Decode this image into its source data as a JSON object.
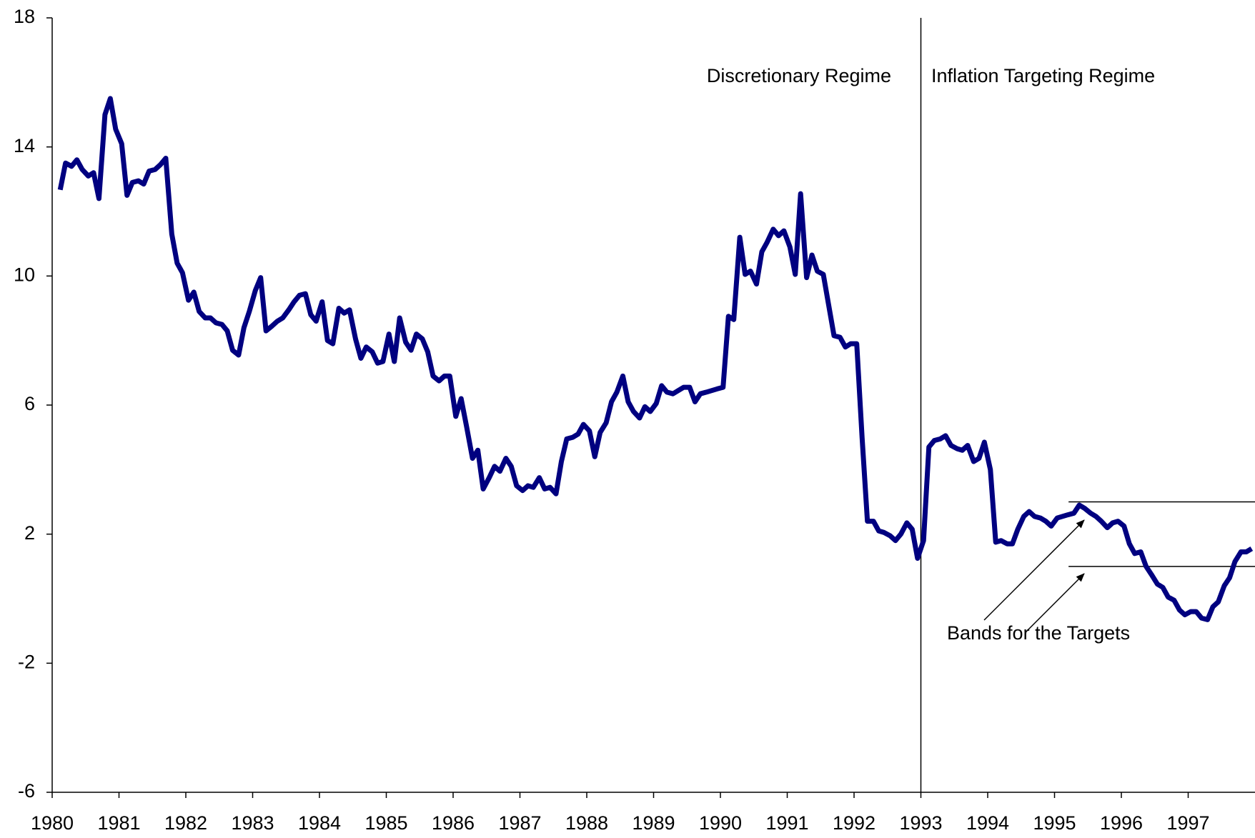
{
  "chart_data": {
    "type": "line",
    "annotations": [
      "Discretionary Regime",
      "Inflation Targeting Regime",
      "Bands for the Targets"
    ],
    "regime_change": 1993,
    "bands": [
      {
        "x": [
          1995.21,
          1998
        ],
        "y": 3
      },
      {
        "x": [
          1995.21,
          1998
        ],
        "y": 1
      }
    ],
    "xlim": [
      1980,
      1998
    ],
    "xticks": [
      1980,
      1981,
      1982,
      1983,
      1984,
      1985,
      1986,
      1987,
      1988,
      1989,
      1990,
      1991,
      1992,
      1993,
      1994,
      1995,
      1996,
      1997
    ],
    "ylim": [
      -6,
      18
    ],
    "yticks": [
      -6,
      -2,
      2,
      6,
      10,
      14,
      18
    ],
    "x": [
      1980.12,
      1980.2,
      1980.29,
      1980.37,
      1980.45,
      1980.54,
      1980.62,
      1980.7,
      1980.79,
      1980.87,
      1980.95,
      1981.04,
      1981.12,
      1981.2,
      1981.29,
      1981.37,
      1981.45,
      1981.54,
      1981.62,
      1981.7,
      1981.79,
      1981.87,
      1981.95,
      1982.04,
      1982.12,
      1982.2,
      1982.29,
      1982.37,
      1982.45,
      1982.54,
      1982.62,
      1982.7,
      1982.79,
      1982.87,
      1982.95,
      1983.04,
      1983.12,
      1983.2,
      1983.29,
      1983.37,
      1983.45,
      1983.54,
      1983.62,
      1983.7,
      1983.79,
      1983.87,
      1983.95,
      1984.04,
      1984.12,
      1984.2,
      1984.29,
      1984.37,
      1984.45,
      1984.54,
      1984.62,
      1984.7,
      1984.79,
      1984.87,
      1984.95,
      1985.04,
      1985.12,
      1985.2,
      1985.29,
      1985.37,
      1985.45,
      1985.54,
      1985.62,
      1985.7,
      1985.79,
      1985.87,
      1985.95,
      1986.04,
      1986.12,
      1986.2,
      1986.29,
      1986.37,
      1986.45,
      1986.54,
      1986.62,
      1986.7,
      1986.79,
      1986.87,
      1986.95,
      1987.04,
      1987.12,
      1987.2,
      1987.29,
      1987.37,
      1987.45,
      1987.54,
      1987.62,
      1987.7,
      1987.79,
      1987.87,
      1987.95,
      1988.04,
      1988.12,
      1988.2,
      1988.29,
      1988.37,
      1988.45,
      1988.54,
      1988.62,
      1988.7,
      1988.79,
      1988.87,
      1988.95,
      1989.04,
      1989.12,
      1989.2,
      1989.29,
      1989.37,
      1989.45,
      1989.54,
      1989.62,
      1989.7,
      1989.79,
      1989.87,
      1989.95,
      1990.04,
      1990.12,
      1990.2,
      1990.29,
      1990.37,
      1990.45,
      1990.54,
      1990.62,
      1990.7,
      1990.79,
      1990.87,
      1990.95,
      1991.04,
      1991.12,
      1991.2,
      1991.29,
      1991.37,
      1991.45,
      1991.54,
      1991.62,
      1991.7,
      1991.79,
      1991.87,
      1991.95,
      1992.04,
      1992.12,
      1992.2,
      1992.29,
      1992.37,
      1992.45,
      1992.54,
      1992.62,
      1992.7,
      1992.79,
      1992.87,
      1992.95,
      1993.04,
      1993.12,
      1993.2,
      1993.29,
      1993.37,
      1993.45,
      1993.54,
      1993.62,
      1993.7,
      1993.79,
      1993.87,
      1993.95,
      1994.04,
      1994.12,
      1994.2,
      1994.29,
      1994.37,
      1994.45,
      1994.54,
      1994.62,
      1994.7,
      1994.79,
      1994.87,
      1994.95,
      1995.04,
      1995.12,
      1995.2,
      1995.29,
      1995.37,
      1995.45,
      1995.54,
      1995.62,
      1995.7,
      1995.79,
      1995.87,
      1995.95,
      1996.04,
      1996.12,
      1996.2,
      1996.29,
      1996.37,
      1996.45,
      1996.54,
      1996.62,
      1996.7,
      1996.79,
      1996.87,
      1996.95,
      1997.04,
      1997.12,
      1997.2,
      1997.29,
      1997.37,
      1997.45,
      1997.54,
      1997.62,
      1997.7,
      1997.79,
      1997.87,
      1997.95
    ],
    "series": [
      {
        "color": "#000080",
        "values": [
          12.67,
          13.5,
          13.4,
          13.6,
          13.3,
          13.1,
          13.2,
          12.4,
          15.0,
          15.5,
          14.55,
          14.1,
          12.5,
          12.9,
          12.95,
          12.85,
          13.25,
          13.3,
          13.45,
          13.65,
          11.3,
          10.4,
          10.1,
          9.25,
          9.5,
          8.9,
          8.7,
          8.7,
          8.55,
          8.5,
          8.3,
          7.7,
          7.55,
          8.4,
          8.9,
          9.55,
          9.95,
          8.3,
          8.45,
          8.6,
          8.7,
          8.95,
          9.2,
          9.4,
          9.45,
          8.8,
          8.6,
          9.2,
          8.0,
          7.9,
          9.0,
          8.85,
          8.95,
          8.05,
          7.45,
          7.8,
          7.65,
          7.3,
          7.35,
          8.2,
          7.35,
          8.7,
          7.95,
          7.7,
          8.2,
          8.05,
          7.65,
          6.9,
          6.75,
          6.9,
          6.9,
          5.65,
          6.2,
          5.35,
          4.35,
          4.6,
          3.4,
          3.75,
          4.1,
          3.95,
          4.35,
          4.1,
          3.5,
          3.35,
          3.5,
          3.45,
          3.75,
          3.4,
          3.45,
          3.25,
          4.25,
          4.95,
          5.0,
          5.1,
          5.4,
          5.2,
          4.4,
          5.15,
          5.45,
          6.1,
          6.4,
          6.9,
          6.1,
          5.8,
          5.6,
          5.95,
          5.8,
          6.05,
          6.6,
          6.4,
          6.35,
          6.45,
          6.55,
          6.55,
          6.1,
          6.35,
          6.4,
          6.45,
          6.5,
          6.55,
          8.75,
          8.65,
          11.2,
          10.05,
          10.15,
          9.75,
          10.75,
          11.05,
          11.45,
          11.25,
          11.4,
          10.9,
          10.05,
          12.55,
          9.95,
          10.65,
          10.15,
          10.05,
          9.1,
          8.15,
          8.1,
          7.8,
          7.9,
          7.9,
          5.0,
          2.4,
          2.4,
          2.1,
          2.05,
          1.95,
          1.8,
          2.0,
          2.35,
          2.15,
          1.25,
          1.8,
          4.7,
          4.9,
          4.95,
          5.05,
          4.75,
          4.65,
          4.6,
          4.75,
          4.25,
          4.35,
          4.85,
          4.0,
          1.75,
          1.8,
          1.7,
          1.7,
          2.15,
          2.55,
          2.7,
          2.55,
          2.5,
          2.4,
          2.25,
          2.5,
          2.55,
          2.6,
          2.65,
          2.9,
          2.8,
          2.65,
          2.55,
          2.4,
          2.2,
          2.35,
          2.4,
          2.25,
          1.7,
          1.4,
          1.45,
          1.0,
          0.75,
          0.45,
          0.35,
          0.05,
          -0.05,
          -0.35,
          -0.5,
          -0.4,
          -0.4,
          -0.6,
          -0.65,
          -0.25,
          -0.1,
          0.4,
          0.65,
          1.15,
          1.45,
          1.45,
          1.55
        ]
      }
    ]
  }
}
